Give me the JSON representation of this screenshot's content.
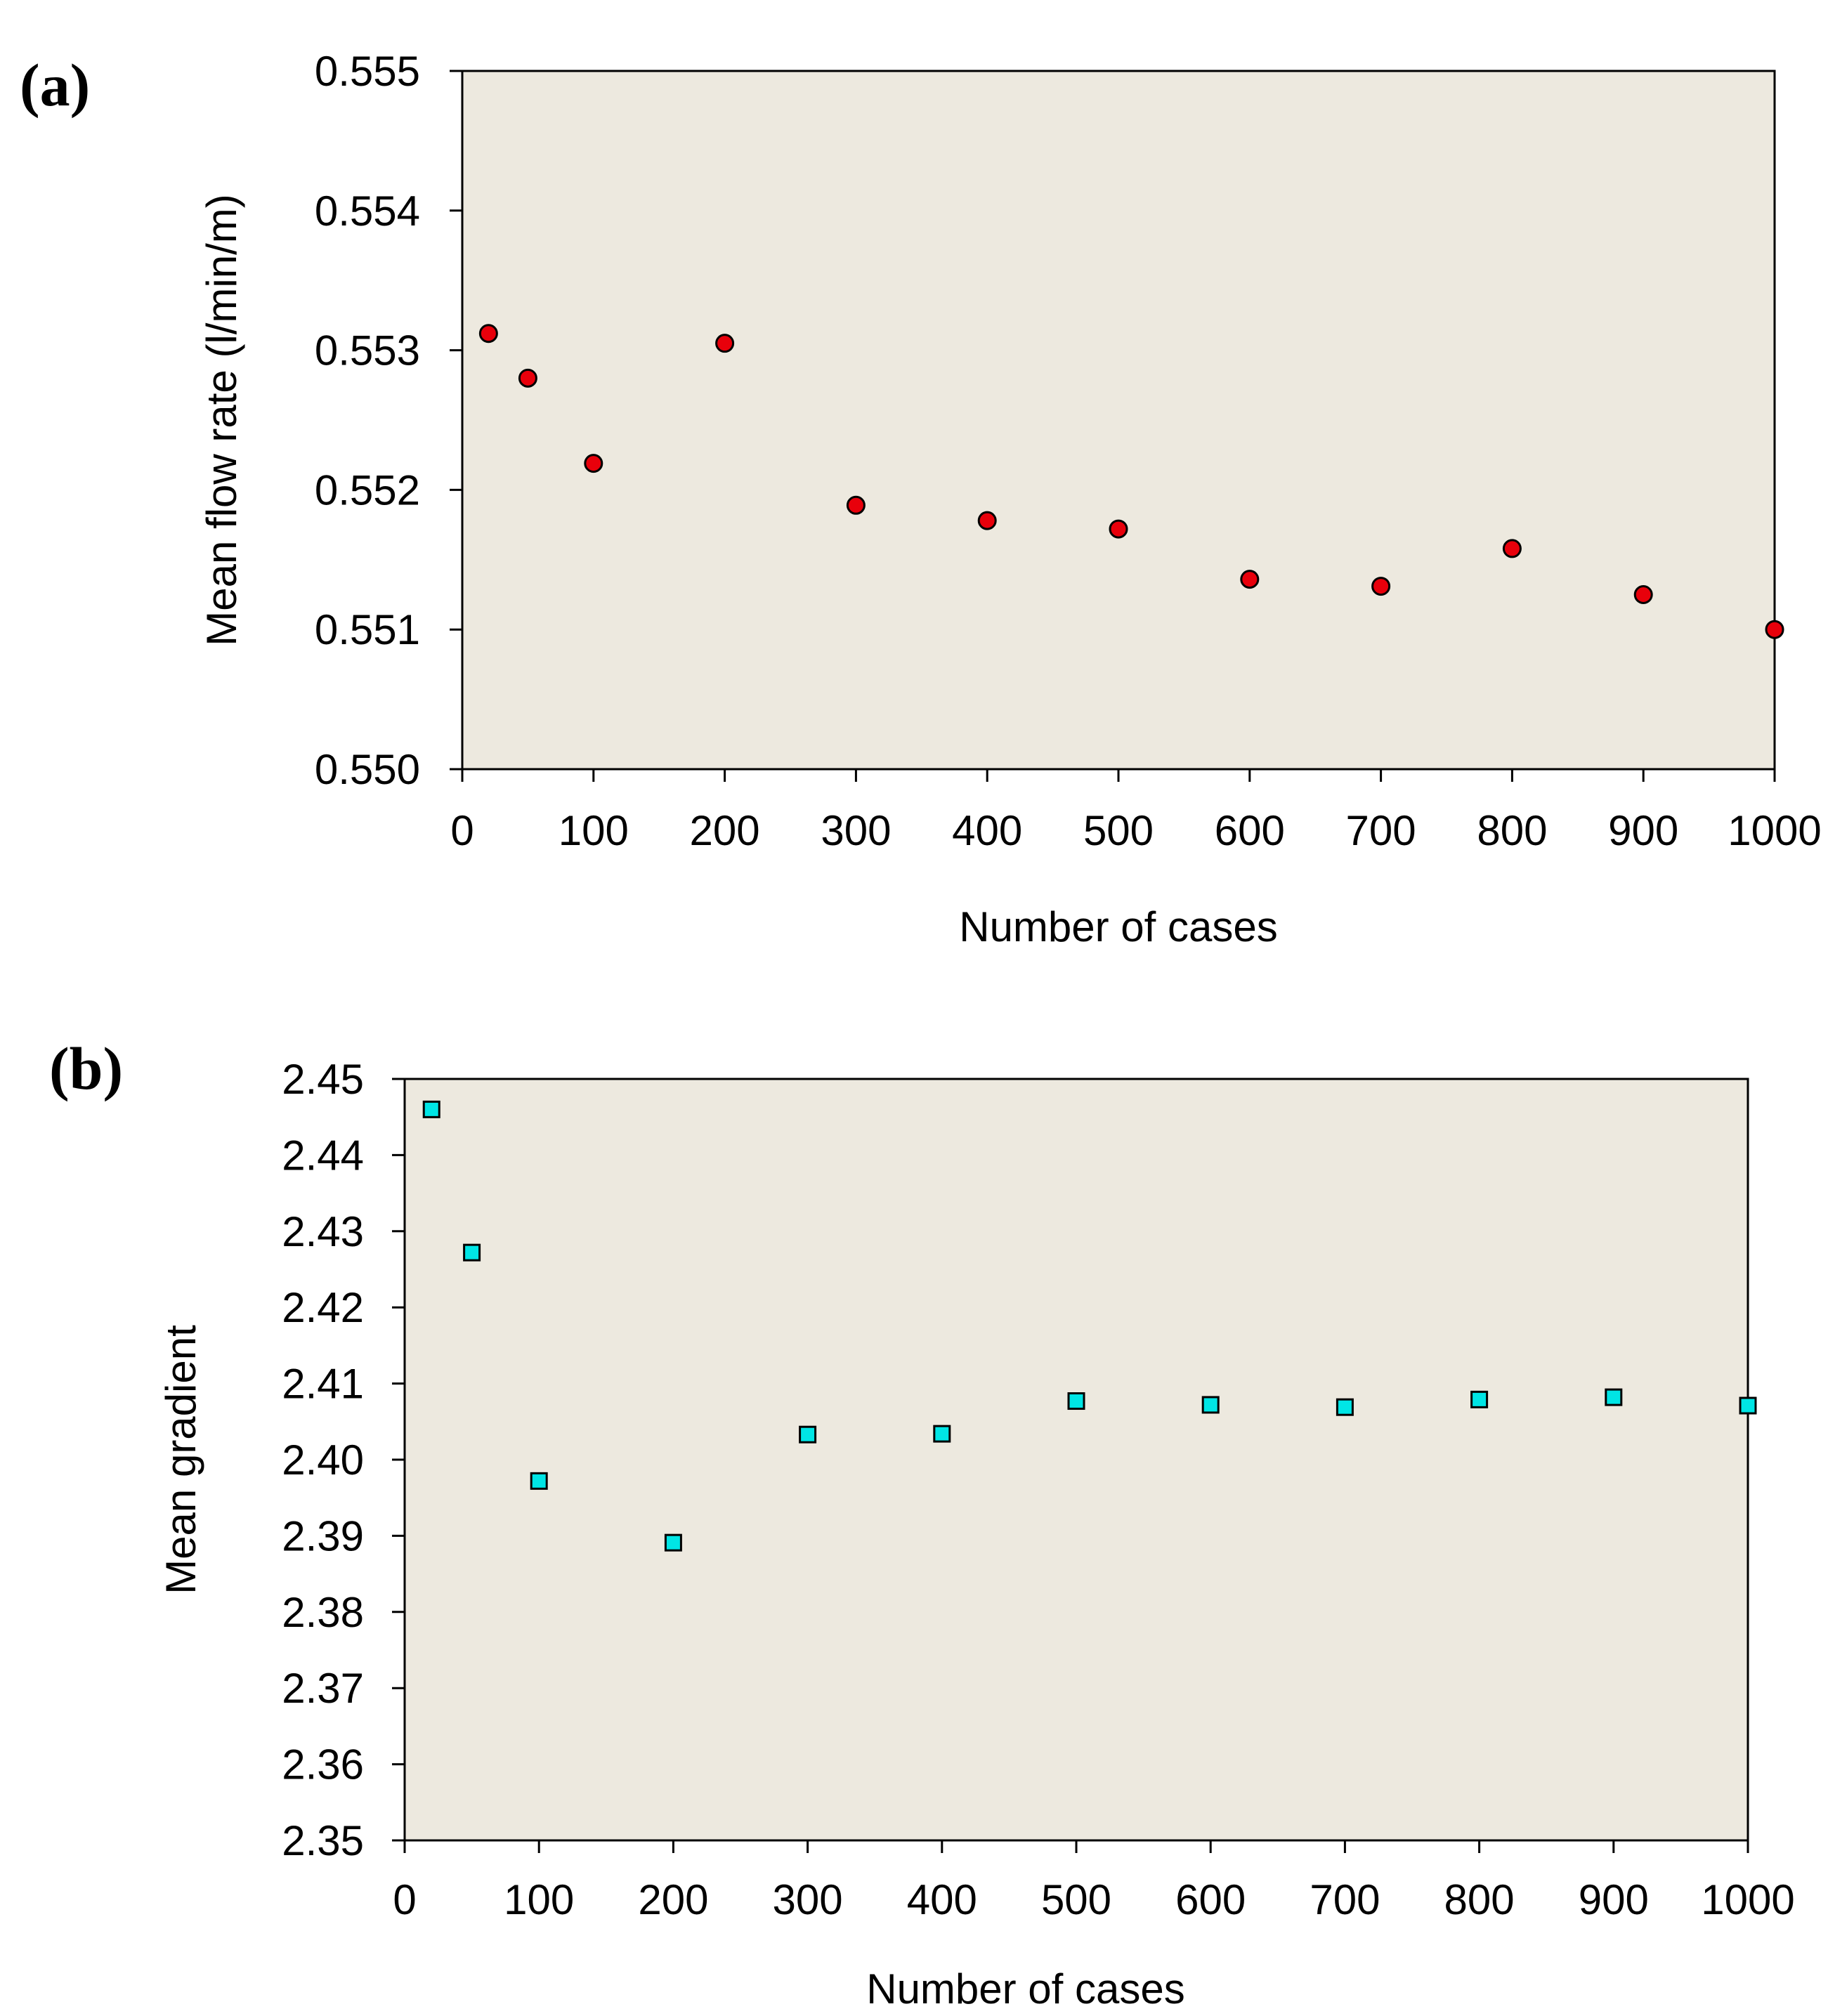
{
  "chart_data": [
    {
      "type": "scatter",
      "panel_label": "(a)",
      "title": "",
      "xlabel": "Number of cases",
      "ylabel": "Mean flow rate (l/min/m)",
      "xlim": [
        0,
        1000
      ],
      "ylim": [
        0.55,
        0.555
      ],
      "grid": false,
      "x_ticks": [
        0,
        100,
        200,
        300,
        400,
        500,
        600,
        700,
        800,
        900,
        1000
      ],
      "x_tick_labels": [
        "0",
        "100",
        "200",
        "300",
        "400",
        "500",
        "600",
        "700",
        "800",
        "900",
        "1000"
      ],
      "y_ticks": [
        0.55,
        0.551,
        0.552,
        0.553,
        0.554,
        0.555
      ],
      "y_tick_labels": [
        "0.550",
        "0.551",
        "0.552",
        "0.553",
        "0.554",
        "0.555"
      ],
      "marker": "circle",
      "marker_color": "#e8000b",
      "plot_background": "#ede9df",
      "series": [
        {
          "name": "Mean flow rate",
          "x": [
            20,
            50,
            100,
            200,
            300,
            400,
            500,
            600,
            700,
            800,
            900,
            1000
          ],
          "y": [
            0.55312,
            0.5528,
            0.55219,
            0.55305,
            0.55189,
            0.55178,
            0.55172,
            0.55136,
            0.55131,
            0.55158,
            0.55125,
            0.551
          ]
        }
      ]
    },
    {
      "type": "scatter",
      "panel_label": "(b)",
      "title": "",
      "xlabel": "Number of cases",
      "ylabel": "Mean gradient",
      "xlim": [
        0,
        1000
      ],
      "ylim": [
        2.35,
        2.45
      ],
      "grid": false,
      "x_ticks": [
        0,
        100,
        200,
        300,
        400,
        500,
        600,
        700,
        800,
        900,
        1000
      ],
      "x_tick_labels": [
        "0",
        "100",
        "200",
        "300",
        "400",
        "500",
        "600",
        "700",
        "800",
        "900",
        "1000"
      ],
      "y_ticks": [
        2.35,
        2.36,
        2.37,
        2.38,
        2.39,
        2.4,
        2.41,
        2.42,
        2.43,
        2.44,
        2.45
      ],
      "y_tick_labels": [
        "2.35",
        "2.36",
        "2.37",
        "2.38",
        "2.39",
        "2.40",
        "2.41",
        "2.42",
        "2.43",
        "2.44",
        "2.45"
      ],
      "marker": "square",
      "marker_color": "#00e5e5",
      "plot_background": "#ede9df",
      "series": [
        {
          "name": "Mean gradient",
          "x": [
            20,
            50,
            100,
            200,
            300,
            400,
            500,
            600,
            700,
            800,
            900,
            1000
          ],
          "y": [
            2.446,
            2.4272,
            2.3972,
            2.3891,
            2.4033,
            2.4034,
            2.4077,
            2.4072,
            2.4069,
            2.4079,
            2.4082,
            2.4071
          ]
        }
      ]
    }
  ]
}
